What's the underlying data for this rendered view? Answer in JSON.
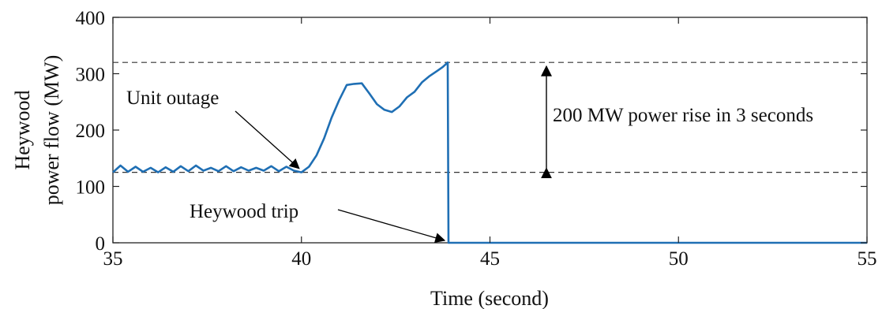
{
  "chart_data": {
    "type": "line",
    "title": "",
    "xlabel": "Time (second)",
    "ylabel_lines": [
      "Heywood",
      "power flow (MW)"
    ],
    "xlim": [
      35,
      55
    ],
    "ylim": [
      0,
      400
    ],
    "x_ticks": [
      35,
      40,
      45,
      50,
      55
    ],
    "y_ticks": [
      0,
      100,
      200,
      300,
      400
    ],
    "grid": false,
    "series": [
      {
        "color": "#1f6fb4",
        "points": [
          [
            35.0,
            125
          ],
          [
            35.2,
            137
          ],
          [
            35.4,
            126
          ],
          [
            35.6,
            135
          ],
          [
            35.8,
            126
          ],
          [
            36.0,
            133
          ],
          [
            36.2,
            125
          ],
          [
            36.4,
            134
          ],
          [
            36.6,
            126
          ],
          [
            36.8,
            136
          ],
          [
            37.0,
            127
          ],
          [
            37.2,
            137
          ],
          [
            37.4,
            128
          ],
          [
            37.6,
            133
          ],
          [
            37.8,
            127
          ],
          [
            38.0,
            136
          ],
          [
            38.2,
            127
          ],
          [
            38.4,
            134
          ],
          [
            38.6,
            128
          ],
          [
            38.8,
            133
          ],
          [
            39.0,
            128
          ],
          [
            39.2,
            136
          ],
          [
            39.4,
            127
          ],
          [
            39.6,
            135
          ],
          [
            39.8,
            128
          ],
          [
            40.0,
            125
          ],
          [
            40.2,
            135
          ],
          [
            40.4,
            155
          ],
          [
            40.6,
            185
          ],
          [
            40.8,
            222
          ],
          [
            41.0,
            253
          ],
          [
            41.2,
            280
          ],
          [
            41.4,
            282
          ],
          [
            41.6,
            283
          ],
          [
            41.8,
            265
          ],
          [
            42.0,
            246
          ],
          [
            42.2,
            236
          ],
          [
            42.4,
            232
          ],
          [
            42.6,
            242
          ],
          [
            42.8,
            258
          ],
          [
            43.0,
            268
          ],
          [
            43.2,
            285
          ],
          [
            43.4,
            296
          ],
          [
            43.6,
            305
          ],
          [
            43.75,
            312
          ],
          [
            43.88,
            320
          ],
          [
            43.9,
            0
          ],
          [
            55.0,
            0
          ]
        ]
      }
    ],
    "reference_lines": [
      125,
      320
    ],
    "annotations": [
      {
        "text": "Unit outage",
        "target": [
          40.0,
          125
        ]
      },
      {
        "text": "Heywood trip",
        "target": [
          43.9,
          0
        ]
      },
      {
        "text": "200 MW power rise in 3 seconds",
        "range": [
          125,
          320
        ]
      }
    ]
  }
}
